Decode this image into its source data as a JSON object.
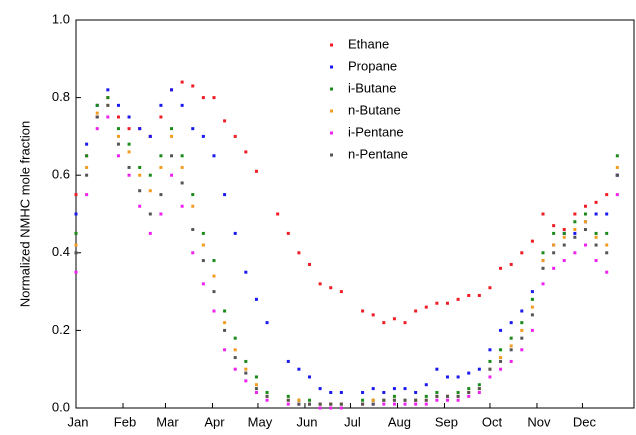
{
  "chart_data": {
    "type": "scatter",
    "ylabel": "Normalized NMHC mole fraction",
    "xlim": [
      0,
      368
    ],
    "xticks": [
      {
        "value": 0,
        "label": "Jan"
      },
      {
        "value": 31,
        "label": "Feb"
      },
      {
        "value": 59,
        "label": "Mar"
      },
      {
        "value": 90,
        "label": "Apr"
      },
      {
        "value": 120,
        "label": "May"
      },
      {
        "value": 151,
        "label": "Jun"
      },
      {
        "value": 181,
        "label": "Jul"
      },
      {
        "value": 212,
        "label": "Aug"
      },
      {
        "value": 243,
        "label": "Sep"
      },
      {
        "value": 273,
        "label": "Oct"
      },
      {
        "value": 304,
        "label": "Nov"
      },
      {
        "value": 334,
        "label": "Dec"
      }
    ],
    "ylim": [
      0,
      1
    ],
    "yticks": [
      {
        "value": 0,
        "label": "0.0"
      },
      0.2,
      0.4,
      0.6,
      0.8,
      {
        "value": 1,
        "label": "1.0"
      }
    ],
    "legend": "top",
    "x": [
      0,
      7,
      14,
      21,
      28,
      35,
      42,
      49,
      56,
      63,
      70,
      77,
      84,
      91,
      98,
      105,
      112,
      119,
      126,
      133,
      140,
      147,
      154,
      161,
      168,
      175,
      182,
      189,
      196,
      203,
      210,
      217,
      224,
      231,
      238,
      245,
      252,
      259,
      266,
      273,
      280,
      287,
      294,
      301,
      308,
      315,
      322,
      329,
      336,
      343,
      350,
      357
    ],
    "series": [
      {
        "name": "Ethane",
        "color": "#ee1c24",
        "values": [
          0.55,
          0.65,
          0.75,
          0.8,
          0.75,
          0.72,
          0.72,
          0.7,
          0.75,
          0.82,
          0.84,
          0.83,
          0.8,
          0.8,
          0.74,
          0.7,
          0.66,
          0.61,
          null,
          0.5,
          0.45,
          0.4,
          0.37,
          0.32,
          0.31,
          0.3,
          null,
          0.25,
          0.24,
          0.22,
          0.23,
          0.22,
          0.25,
          0.26,
          0.27,
          0.27,
          0.28,
          0.29,
          0.29,
          0.31,
          0.36,
          0.37,
          0.4,
          0.43,
          0.5,
          0.47,
          0.46,
          0.5,
          0.52,
          0.53,
          0.55,
          0.6
        ]
      },
      {
        "name": "Propane",
        "color": "#1a1aee",
        "values": [
          0.5,
          0.68,
          0.78,
          0.82,
          0.78,
          0.75,
          0.72,
          0.7,
          0.78,
          0.82,
          0.78,
          0.72,
          0.7,
          0.65,
          0.55,
          0.45,
          0.35,
          0.28,
          0.22,
          null,
          0.12,
          0.1,
          0.08,
          0.05,
          0.04,
          0.04,
          null,
          0.04,
          0.05,
          0.04,
          0.05,
          0.05,
          0.04,
          0.06,
          0.1,
          0.08,
          0.08,
          0.09,
          0.1,
          0.15,
          0.2,
          0.22,
          0.25,
          0.3,
          0.38,
          0.42,
          0.45,
          0.45,
          0.48,
          0.5,
          0.5,
          0.6
        ]
      },
      {
        "name": "i-Butane",
        "color": "#1a8a1a",
        "values": [
          0.45,
          0.65,
          0.78,
          0.8,
          0.72,
          0.68,
          0.62,
          0.6,
          0.65,
          0.72,
          0.65,
          0.55,
          0.45,
          0.38,
          0.25,
          0.18,
          0.12,
          0.08,
          0.04,
          null,
          0.03,
          0.02,
          0.02,
          0.01,
          0.01,
          0.01,
          null,
          0.02,
          0.02,
          0.02,
          0.03,
          0.02,
          0.02,
          0.03,
          0.04,
          0.03,
          0.04,
          0.05,
          0.06,
          0.12,
          0.15,
          0.18,
          0.22,
          0.28,
          0.4,
          0.45,
          0.45,
          0.48,
          0.5,
          0.45,
          0.45,
          0.65
        ]
      },
      {
        "name": "n-Butane",
        "color": "#f39c1f",
        "values": [
          0.42,
          0.62,
          0.76,
          0.78,
          0.7,
          0.66,
          0.6,
          0.56,
          0.62,
          0.7,
          0.62,
          0.52,
          0.42,
          0.34,
          0.22,
          0.15,
          0.1,
          0.06,
          0.03,
          null,
          0.02,
          0.02,
          0.01,
          0.01,
          0.01,
          0.01,
          null,
          0.01,
          0.02,
          0.02,
          0.02,
          0.02,
          0.02,
          0.02,
          0.03,
          0.03,
          0.03,
          0.04,
          0.05,
          0.1,
          0.13,
          0.16,
          0.2,
          0.26,
          0.38,
          0.42,
          0.44,
          0.46,
          0.48,
          0.44,
          0.42,
          0.62
        ]
      },
      {
        "name": "i-Pentane",
        "color": "#ee22ee",
        "values": [
          0.35,
          0.55,
          0.72,
          0.75,
          0.65,
          0.6,
          0.52,
          0.45,
          0.5,
          0.6,
          0.52,
          0.4,
          0.32,
          0.25,
          0.15,
          0.1,
          0.07,
          0.04,
          0.02,
          null,
          0.01,
          0.01,
          0.01,
          0.0,
          0.0,
          0.0,
          null,
          0.01,
          0.01,
          0.01,
          0.01,
          0.01,
          0.01,
          0.01,
          0.02,
          0.02,
          0.02,
          0.03,
          0.04,
          0.08,
          0.1,
          0.12,
          0.15,
          0.2,
          0.32,
          0.36,
          0.38,
          0.4,
          0.42,
          0.38,
          0.35,
          0.55
        ]
      },
      {
        "name": "n-Pentane",
        "color": "#555555",
        "values": [
          0.4,
          0.6,
          0.75,
          0.78,
          0.68,
          0.62,
          0.56,
          0.5,
          0.55,
          0.65,
          0.58,
          0.46,
          0.38,
          0.3,
          0.2,
          0.13,
          0.09,
          0.05,
          0.03,
          null,
          0.02,
          0.01,
          0.01,
          0.01,
          0.01,
          0.01,
          null,
          0.01,
          0.01,
          0.02,
          0.02,
          0.02,
          0.02,
          0.02,
          0.03,
          0.03,
          0.03,
          0.04,
          0.05,
          0.1,
          0.12,
          0.15,
          0.18,
          0.24,
          0.36,
          0.4,
          0.42,
          0.44,
          0.46,
          0.42,
          0.4,
          0.6
        ]
      }
    ]
  }
}
